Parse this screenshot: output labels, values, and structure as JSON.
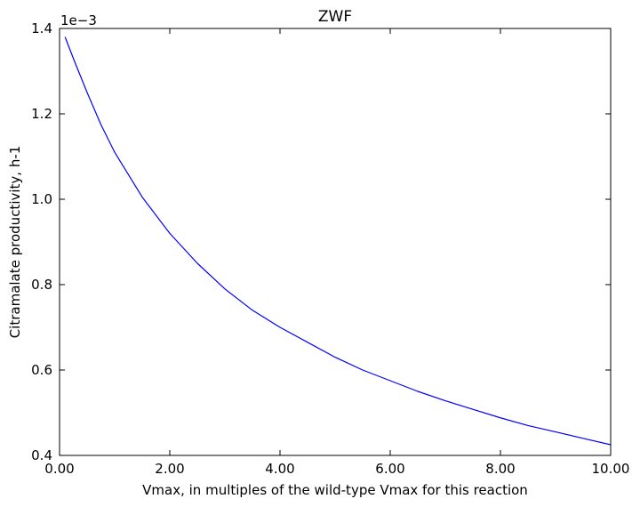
{
  "chart_data": {
    "type": "line",
    "title": "ZWF",
    "xlabel": "Vmax, in multiples of the wild-type Vmax for this reaction",
    "ylabel": "Citramalate productivity, h-1",
    "y_offset_label": "1e−3",
    "xlim": [
      0.0,
      10.0
    ],
    "ylim": [
      0.4,
      1.4
    ],
    "x_ticks": [
      0,
      2,
      4,
      6,
      8,
      10
    ],
    "x_tick_labels": [
      "0.00",
      "2.00",
      "4.00",
      "6.00",
      "8.00",
      "10.00"
    ],
    "y_ticks": [
      0.4,
      0.6,
      0.8,
      1.0,
      1.2,
      1.4
    ],
    "y_tick_labels": [
      "0.4",
      "0.6",
      "0.8",
      "1.0",
      "1.2",
      "1.4"
    ],
    "grid": false,
    "series": [
      {
        "color": "#0000ff",
        "x": [
          0.1,
          0.25,
          0.5,
          0.75,
          1.0,
          1.5,
          2.0,
          2.5,
          3.0,
          3.5,
          4.0,
          4.5,
          5.0,
          5.5,
          6.0,
          6.5,
          7.0,
          7.5,
          8.0,
          8.5,
          9.0,
          9.5,
          10.0
        ],
        "values": [
          1.38,
          1.33,
          1.25,
          1.175,
          1.11,
          1.005,
          0.92,
          0.85,
          0.79,
          0.74,
          0.7,
          0.665,
          0.63,
          0.6,
          0.575,
          0.55,
          0.528,
          0.508,
          0.488,
          0.47,
          0.455,
          0.44,
          0.425
        ]
      }
    ]
  }
}
